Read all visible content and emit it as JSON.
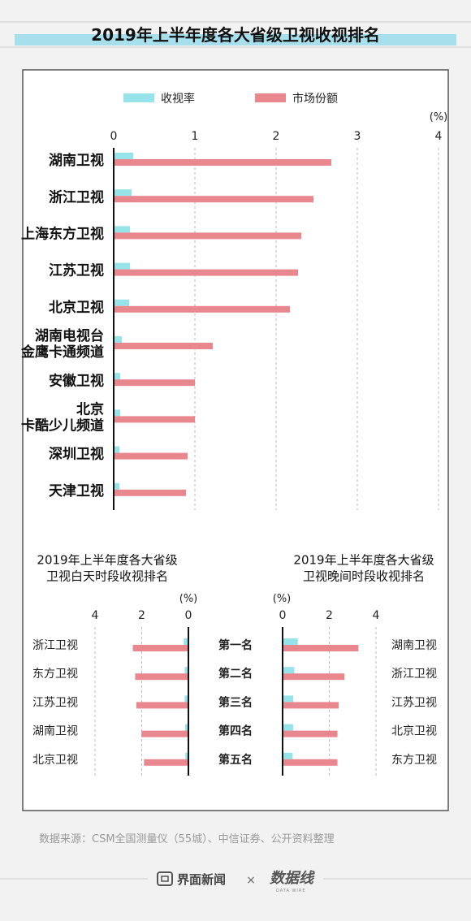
{
  "page": {
    "title": "2019年上半年度各大省级卫视收视排名",
    "source": "数据来源：CSM全国测量仪（55城）、中信证券、公开资料整理",
    "footer_brand": "界面新闻",
    "footer_separator": "×",
    "partner_brand": "数据线",
    "partner_sub": "DATA WIRE"
  },
  "colors": {
    "rating": "#96e4ea",
    "share": "#e8878d",
    "title_band": "#a7dfec",
    "axis": "#111111",
    "grid": "#bbbbbb"
  },
  "chart_data": [
    {
      "type": "bar",
      "orientation": "horizontal",
      "unit": "(%)",
      "xlim": [
        0,
        4
      ],
      "ticks": [
        0,
        1,
        2,
        3,
        4
      ],
      "legend_position": "top",
      "categories": [
        "湖南卫视",
        "浙江卫视",
        "上海东方卫视",
        "江苏卫视",
        "北京卫视",
        "湖南电视台\n金鹰卡通频道",
        "安徽卫视",
        "北京\n卡酷少儿频道",
        "深圳卫视",
        "天津卫视"
      ],
      "series": [
        {
          "name": "收视率",
          "values": [
            0.24,
            0.22,
            0.2,
            0.2,
            0.19,
            0.1,
            0.08,
            0.08,
            0.07,
            0.07
          ]
        },
        {
          "name": "市场份额",
          "values": [
            2.68,
            2.46,
            2.31,
            2.27,
            2.17,
            1.22,
            1.0,
            1.0,
            0.91,
            0.89
          ]
        }
      ]
    },
    {
      "type": "bar",
      "orientation": "horizontal",
      "direction": "right-to-left",
      "title": "2019年上半年度各大省级\n卫视白天时段收视排名",
      "unit": "(%)",
      "xlim": [
        0,
        4
      ],
      "ticks": [
        4,
        2,
        0
      ],
      "categories": [
        "浙江卫视",
        "东方卫视",
        "江苏卫视",
        "湖南卫视",
        "北京卫视"
      ],
      "series": [
        {
          "name": "收视率",
          "values": [
            0.2,
            0.16,
            0.16,
            0.14,
            0.13
          ]
        },
        {
          "name": "市场份额",
          "values": [
            2.38,
            2.28,
            2.23,
            2.01,
            1.9
          ]
        }
      ]
    },
    {
      "type": "bar",
      "orientation": "horizontal",
      "title": "2019年上半年度各大省级\n卫视晚间时段收视排名",
      "unit": "(%)",
      "xlim": [
        0,
        4
      ],
      "ticks": [
        0,
        2,
        4
      ],
      "categories": [
        "湖南卫视",
        "浙江卫视",
        "江苏卫视",
        "北京卫视",
        "东方卫视"
      ],
      "series": [
        {
          "name": "收视率",
          "values": [
            0.65,
            0.5,
            0.45,
            0.45,
            0.43
          ]
        },
        {
          "name": "市场份额",
          "values": [
            3.25,
            2.65,
            2.4,
            2.35,
            2.35
          ]
        }
      ]
    }
  ],
  "ranks": [
    "第一名",
    "第二名",
    "第三名",
    "第四名",
    "第五名"
  ]
}
